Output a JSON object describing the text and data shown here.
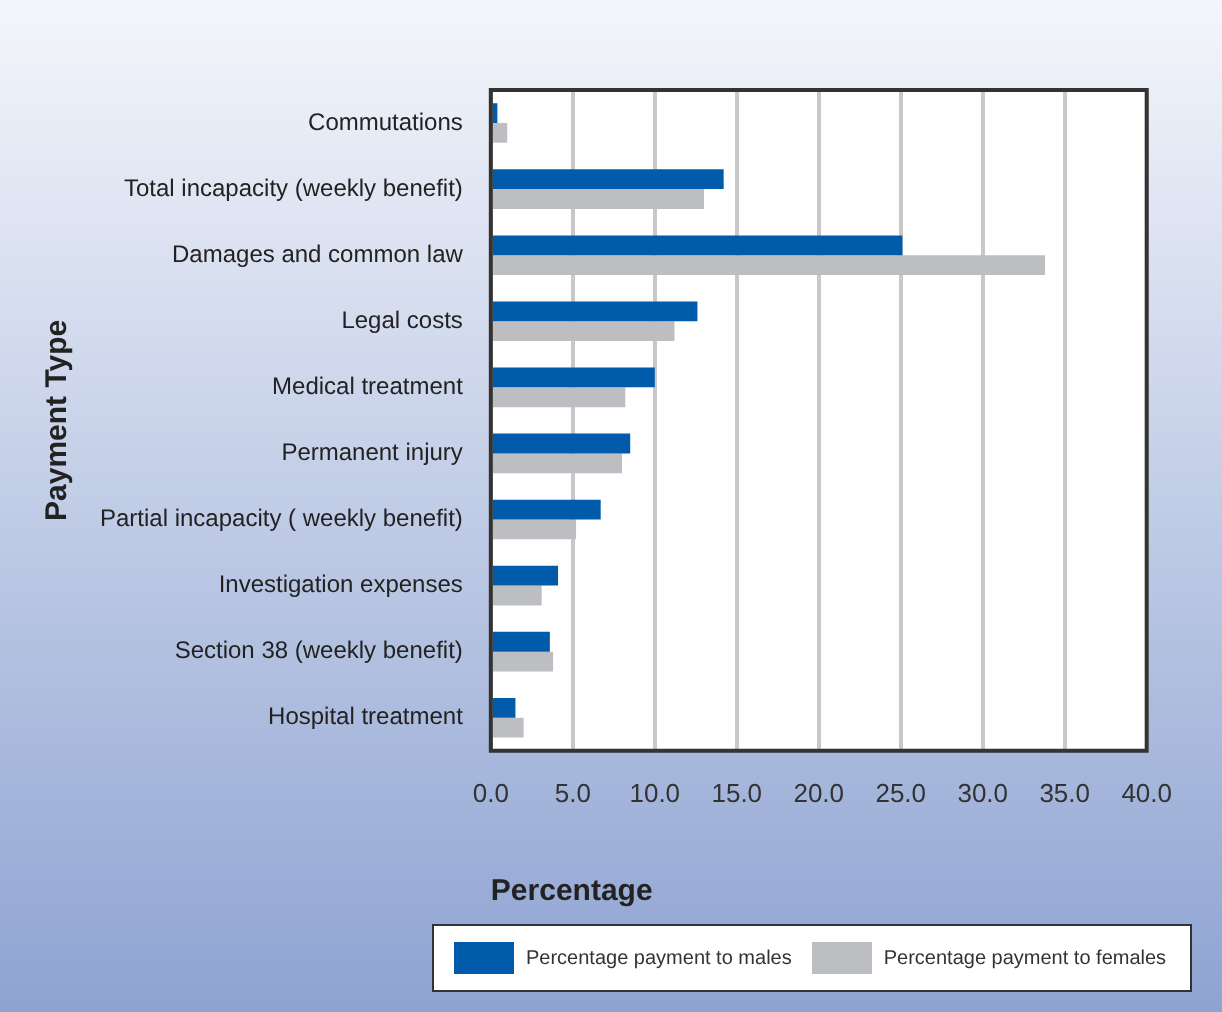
{
  "chart_data": {
    "type": "bar",
    "orientation": "horizontal",
    "ylabel": "Payment Type",
    "xlabel": "Percentage",
    "categories": [
      "Commutations",
      "Total incapacity (weekly benefit)",
      "Damages and common law",
      "Legal costs",
      "Medical treatment",
      "Permanent injury",
      "Partial incapacity ( weekly benefit)",
      "Investigation expenses",
      "Section 38 (weekly benefit)",
      "Hospital treatment"
    ],
    "series": [
      {
        "name": "Percentage payment to males",
        "color": "#005baa",
        "values": [
          0.4,
          14.2,
          25.1,
          12.6,
          10.0,
          8.5,
          6.7,
          4.1,
          3.6,
          1.5
        ]
      },
      {
        "name": "Percentage payment to females",
        "color": "#bdbec2",
        "values": [
          1.0,
          13.0,
          33.8,
          11.2,
          8.2,
          8.0,
          5.2,
          3.1,
          3.8,
          2.0
        ]
      }
    ],
    "xlim": [
      0,
      40
    ],
    "xticks": [
      {
        "value": 0,
        "label": "0.0"
      },
      {
        "value": 5,
        "label": "5.0"
      },
      {
        "value": 10,
        "label": "10.0"
      },
      {
        "value": 15,
        "label": "15.0"
      },
      {
        "value": 20,
        "label": "20.0"
      },
      {
        "value": 25,
        "label": "25.0"
      },
      {
        "value": 30,
        "label": "30.0"
      },
      {
        "value": 35,
        "label": "35.0"
      },
      {
        "value": 40,
        "label": "40.0"
      }
    ],
    "grid": "x",
    "legend": "bottom"
  }
}
